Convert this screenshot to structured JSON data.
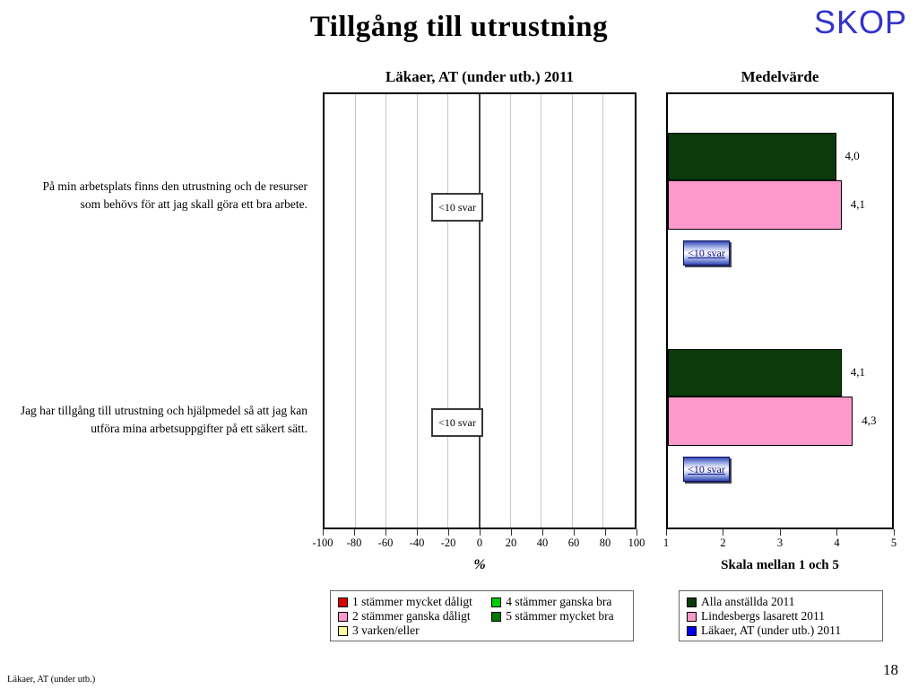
{
  "slide": {
    "title": "Tillgång till utrustning",
    "logo": "SKOP",
    "footer": "Läkaer, AT (under utb.)",
    "page_number": "18"
  },
  "questions": [
    {
      "text": "På min arbetsplats finns den utrustning och de resurser som behövs för att jag skall göra ett bra arbete."
    },
    {
      "text": "Jag har tillgång till utrustning och hjälpmedel så att jag kan utföra mina arbetsuppgifter på ett säkert sätt."
    }
  ],
  "left_chart": {
    "title": "Läkaer, AT (under utb.) 2011",
    "xlabel": "%",
    "ticks": [
      "-100",
      "-80",
      "-60",
      "-40",
      "-20",
      "0",
      "20",
      "40",
      "60",
      "80",
      "100"
    ],
    "no_answer_label": "<10 svar"
  },
  "right_chart": {
    "title": "Medelvärde",
    "xlabel": "Skala mellan 1 och 5",
    "ticks": [
      "1",
      "2",
      "3",
      "4",
      "5"
    ],
    "xmin": 1,
    "xmax": 5,
    "no_answer_label": "<10 svar",
    "groups": [
      {
        "bars": [
          {
            "series": "Alla anställda 2011",
            "value": 4.0,
            "label": "4,0",
            "color": "#0B3B0B"
          },
          {
            "series": "Lindesbergs lasarett 2011",
            "value": 4.1,
            "label": "4,1",
            "color": "#FF99CC"
          }
        ],
        "no_answer": {
          "series": "Läkaer, AT (under utb.) 2011",
          "label": "<10 svar"
        }
      },
      {
        "bars": [
          {
            "series": "Alla anställda 2011",
            "value": 4.1,
            "label": "4,1",
            "color": "#0B3B0B"
          },
          {
            "series": "Lindesbergs lasarett 2011",
            "value": 4.3,
            "label": "4,3",
            "color": "#FF99CC"
          }
        ],
        "no_answer": {
          "series": "Läkaer, AT (under utb.) 2011",
          "label": "<10 svar"
        }
      }
    ]
  },
  "legend_left": {
    "items": [
      {
        "label": "1 stämmer mycket dåligt",
        "color": "#DD0000"
      },
      {
        "label": "2 stämmer ganska dåligt",
        "color": "#FF99CC"
      },
      {
        "label": "3 varken/eller",
        "color": "#FFFF99"
      },
      {
        "label": "4 stämmer ganska bra",
        "color": "#00CC00"
      },
      {
        "label": "5 stämmer mycket bra",
        "color": "#007700"
      }
    ]
  },
  "legend_right": {
    "items": [
      {
        "label": "Alla anställda 2011",
        "color": "#0B3B0B"
      },
      {
        "label": "Lindesbergs lasarett 2011",
        "color": "#FF99CC"
      },
      {
        "label": "Läkaer, AT (under utb.) 2011",
        "color": "#0000EE"
      }
    ]
  },
  "colors": {
    "logo_blue": "#3333CC",
    "dark_green": "#0B3B0B",
    "pink": "#FF99CC",
    "blue": "#0000EE"
  },
  "chart_data": [
    {
      "type": "bar",
      "orientation": "horizontal",
      "title": "Läkaer, AT (under utb.) 2011",
      "categories": [
        "På min arbetsplats finns den utrustning och de resurser som behövs för att jag skall göra ett bra arbete.",
        "Jag har tillgång till utrustning och hjälpmedel så att jag kan utföra mina arbetsuppgifter på ett säkert sätt."
      ],
      "values": [
        "<10 svar",
        "<10 svar"
      ],
      "xlabel": "%",
      "xlim": [
        -100,
        100
      ],
      "xticks": [
        -100,
        -80,
        -60,
        -40,
        -20,
        0,
        20,
        40,
        60,
        80,
        100
      ],
      "grid": true,
      "legend": [
        "1 stämmer mycket dåligt",
        "2 stämmer ganska dåligt",
        "3 varken/eller",
        "4 stämmer ganska bra",
        "5 stämmer mycket bra"
      ],
      "legend_position": "bottom"
    },
    {
      "type": "bar",
      "orientation": "horizontal",
      "title": "Medelvärde",
      "categories": [
        "På min arbetsplats finns den utrustning och de resurser som behövs för att jag skall göra ett bra arbete.",
        "Jag har tillgång till utrustning och hjälpmedel så att jag kan utföra mina arbetsuppgifter på ett säkert sätt."
      ],
      "series": [
        {
          "name": "Alla anställda 2011",
          "values": [
            4.0,
            4.1
          ],
          "color": "#0B3B0B"
        },
        {
          "name": "Lindesbergs lasarett 2011",
          "values": [
            4.1,
            4.3
          ],
          "color": "#FF99CC"
        },
        {
          "name": "Läkaer, AT (under utb.) 2011",
          "values": [
            "<10 svar",
            "<10 svar"
          ],
          "color": "#0000EE"
        }
      ],
      "data_labels": [
        [
          "4,0",
          "4,1",
          "<10 svar"
        ],
        [
          "4,1",
          "4,3",
          "<10 svar"
        ]
      ],
      "xlabel": "Skala mellan 1 och 5",
      "xlim": [
        1,
        5
      ],
      "xticks": [
        1,
        2,
        3,
        4,
        5
      ],
      "grid": false,
      "legend_position": "bottom"
    }
  ]
}
